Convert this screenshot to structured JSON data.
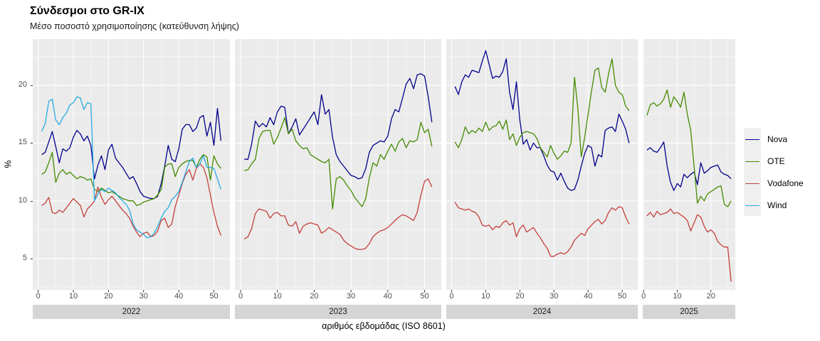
{
  "title": "Σύνδεσμοι στο GR-IX",
  "subtitle": "Μέσο ποσοστό χρησιμοποίησης (κατεύθυνση λήψης)",
  "x_axis": {
    "title": "αριθμός εβδομάδας (ISO 8601)"
  },
  "y_axis": {
    "label": "%",
    "ticks": [
      5,
      10,
      15,
      20
    ],
    "range": [
      2.3,
      24.0
    ]
  },
  "legend": {
    "items": [
      {
        "label": "Nova",
        "color": "#00008B"
      },
      {
        "label": "OTE",
        "color": "#458B00"
      },
      {
        "label": "Vodafone",
        "color": "#C4403C"
      },
      {
        "label": "Wind",
        "color": "#29ABE2"
      }
    ]
  },
  "chart_data": {
    "type": "line",
    "xlabel": "αριθμός εβδομάδας (ISO 8601)",
    "ylabel": "%",
    "ylim": [
      2.3,
      24.0
    ],
    "y_major_gridlines": [
      5,
      10,
      15,
      20
    ],
    "y_minor_gridlines": [
      2.5,
      7.5,
      12.5,
      17.5,
      22.5
    ],
    "weeks_start": 1,
    "facets": [
      {
        "year": "2022",
        "x_ticks": [
          0,
          10,
          20,
          30,
          40,
          50
        ],
        "series": [
          {
            "name": "Nova",
            "color": "#00008B",
            "values": [
              14.0,
              14.2,
              15.1,
              16.0,
              14.7,
              13.3,
              14.5,
              14.3,
              14.6,
              15.5,
              16.1,
              15.8,
              15.2,
              15.6,
              14.8,
              11.9,
              13.1,
              13.9,
              12.7,
              14.4,
              14.9,
              13.7,
              13.3,
              12.9,
              12.4,
              11.9,
              12.1,
              11.5,
              10.8,
              10.4,
              10.3,
              10.2,
              10.2,
              10.4,
              11.5,
              13.0,
              14.8,
              13.6,
              13.4,
              14.5,
              16.2,
              16.6,
              16.6,
              16.0,
              16.3,
              17.2,
              17.4,
              15.6,
              16.8,
              14.8,
              18.0,
              15.2
            ]
          },
          {
            "name": "OTE",
            "color": "#458B00",
            "values": [
              12.3,
              12.5,
              13.3,
              14.2,
              11.6,
              12.4,
              12.7,
              12.3,
              12.5,
              12.2,
              11.9,
              12.1,
              12.0,
              11.8,
              11.9,
              11.0,
              10.8,
              11.1,
              10.9,
              10.7,
              10.8,
              10.6,
              10.4,
              10.2,
              10.1,
              10.0,
              10.0,
              9.6,
              9.7,
              9.9,
              10.0,
              10.1,
              10.2,
              10.5,
              11.0,
              12.9,
              13.2,
              13.2,
              12.1,
              12.9,
              13.2,
              13.4,
              13.5,
              13.5,
              12.9,
              13.6,
              14.0,
              13.8,
              11.8,
              13.9,
              13.2,
              12.8
            ]
          },
          {
            "name": "Vodafone",
            "color": "#C4403C",
            "values": [
              9.6,
              9.8,
              10.3,
              9.0,
              8.9,
              9.2,
              9.0,
              9.4,
              9.8,
              10.2,
              9.9,
              9.6,
              8.6,
              9.3,
              9.6,
              10.0,
              11.2,
              10.3,
              9.7,
              10.1,
              10.4,
              10.0,
              9.6,
              9.2,
              8.9,
              8.5,
              7.8,
              7.3,
              6.9,
              7.2,
              7.3,
              6.9,
              7.0,
              7.4,
              8.3,
              8.5,
              7.7,
              8.0,
              9.5,
              10.5,
              11.5,
              12.3,
              12.7,
              11.8,
              12.8,
              13.2,
              12.9,
              12.0,
              10.5,
              9.0,
              7.8,
              7.0
            ]
          },
          {
            "name": "Wind",
            "color": "#29ABE2",
            "values": [
              16.0,
              16.7,
              18.6,
              18.8,
              17.0,
              16.6,
              17.2,
              17.6,
              18.3,
              18.5,
              19.0,
              18.9,
              17.9,
              18.5,
              18.4,
              10.0,
              10.6,
              11.0,
              10.8,
              11.1,
              10.9,
              10.7,
              10.3,
              10.0,
              9.7,
              9.2,
              8.0,
              7.5,
              7.3,
              7.1,
              6.8,
              6.9,
              7.2,
              7.8,
              8.5,
              9.1,
              9.4,
              10.1,
              10.4,
              10.8,
              11.6,
              12.5,
              13.4,
              13.7,
              12.9,
              13.2,
              13.9,
              12.9,
              12.9,
              12.8,
              11.9,
              11.0
            ]
          }
        ]
      },
      {
        "year": "2023",
        "x_ticks": [
          0,
          10,
          20,
          30,
          40,
          50
        ],
        "series": [
          {
            "name": "Nova",
            "color": "#00008B",
            "values": [
              13.6,
              13.6,
              14.9,
              16.9,
              16.4,
              16.7,
              16.4,
              17.2,
              16.6,
              17.7,
              18.2,
              18.1,
              15.8,
              16.4,
              17.1,
              15.7,
              16.2,
              16.7,
              17.2,
              17.7,
              16.6,
              19.2,
              17.5,
              17.9,
              15.5,
              14.0,
              13.4,
              13.0,
              12.6,
              12.2,
              12.1,
              11.9,
              12.0,
              12.8,
              14.2,
              14.8,
              15.0,
              15.2,
              15.1,
              15.6,
              17.1,
              17.9,
              17.7,
              18.9,
              20.1,
              20.6,
              19.7,
              20.9,
              21.0,
              20.8,
              19.0,
              16.8
            ]
          },
          {
            "name": "OTE",
            "color": "#458B00",
            "values": [
              12.6,
              12.7,
              13.2,
              13.6,
              15.4,
              16.0,
              16.1,
              16.1,
              14.9,
              15.5,
              16.3,
              17.2,
              15.8,
              16.2,
              15.2,
              14.8,
              14.5,
              14.6,
              14.0,
              13.8,
              13.6,
              13.4,
              13.3,
              13.6,
              9.3,
              11.9,
              12.1,
              11.8,
              11.3,
              10.9,
              10.3,
              9.9,
              9.5,
              10.2,
              12.0,
              13.3,
              13.0,
              14.0,
              13.6,
              14.3,
              14.9,
              14.3,
              15.1,
              15.4,
              14.6,
              15.2,
              15.1,
              15.3,
              16.8,
              15.9,
              16.2,
              14.7
            ]
          },
          {
            "name": "Vodafone",
            "color": "#C4403C",
            "values": [
              6.7,
              6.9,
              7.6,
              8.9,
              9.3,
              9.2,
              9.1,
              8.5,
              8.9,
              9.0,
              8.7,
              8.7,
              7.9,
              7.8,
              8.2,
              7.2,
              7.8,
              8.0,
              8.1,
              8.0,
              7.9,
              7.2,
              7.4,
              7.7,
              7.5,
              7.3,
              7.1,
              6.6,
              6.3,
              6.1,
              5.9,
              5.8,
              5.8,
              5.9,
              6.3,
              6.9,
              7.2,
              7.4,
              7.5,
              7.7,
              8.0,
              8.3,
              8.6,
              8.8,
              8.7,
              8.5,
              8.3,
              9.0,
              10.5,
              11.7,
              11.9,
              11.2
            ]
          }
        ]
      },
      {
        "year": "2024",
        "x_ticks": [
          0,
          10,
          20,
          30,
          40,
          50
        ],
        "series": [
          {
            "name": "Nova",
            "color": "#00008B",
            "values": [
              19.9,
              19.2,
              20.3,
              20.9,
              20.7,
              21.3,
              21.2,
              21.1,
              22.1,
              23.0,
              21.8,
              20.6,
              20.8,
              20.7,
              21.2,
              22.3,
              19.4,
              17.9,
              20.3,
              17.0,
              14.9,
              15.3,
              14.4,
              15.0,
              14.6,
              14.6,
              13.9,
              13.1,
              12.6,
              12.5,
              11.8,
              12.4,
              11.7,
              11.1,
              10.9,
              11.0,
              11.8,
              13.0,
              14.1,
              14.8,
              14.6,
              13.0,
              14.0,
              13.8,
              16.1,
              16.3,
              16.4,
              16.0,
              17.5,
              16.9,
              16.2,
              15.0
            ]
          },
          {
            "name": "OTE",
            "color": "#458B00",
            "values": [
              15.1,
              14.6,
              15.3,
              16.4,
              15.8,
              16.1,
              15.9,
              16.3,
              16.0,
              16.8,
              16.1,
              16.4,
              16.5,
              16.9,
              16.2,
              17.0,
              15.3,
              15.8,
              14.8,
              15.5,
              15.9,
              16.0,
              15.9,
              15.8,
              15.4,
              14.6,
              14.2,
              13.8,
              14.8,
              14.1,
              13.6,
              13.9,
              14.3,
              14.2,
              15.0,
              20.7,
              18.0,
              13.8,
              15.5,
              17.5,
              19.5,
              21.3,
              21.5,
              19.8,
              19.4,
              21.0,
              22.3,
              20.0,
              19.4,
              19.2,
              18.2,
              17.8
            ]
          },
          {
            "name": "Vodafone",
            "color": "#C4403C",
            "values": [
              9.9,
              9.4,
              9.3,
              9.2,
              9.3,
              9.1,
              9.0,
              8.6,
              7.9,
              7.8,
              7.9,
              7.5,
              7.8,
              7.7,
              8.1,
              8.3,
              7.9,
              8.1,
              6.9,
              7.6,
              7.9,
              7.3,
              7.5,
              7.7,
              7.2,
              6.8,
              6.3,
              5.9,
              5.2,
              5.2,
              5.4,
              5.5,
              5.4,
              5.6,
              6.0,
              6.6,
              6.9,
              7.2,
              7.0,
              7.6,
              7.9,
              8.2,
              8.4,
              8.0,
              8.3,
              9.0,
              9.4,
              9.2,
              9.5,
              9.4,
              8.6,
              8.0
            ]
          }
        ]
      },
      {
        "year": "2025",
        "x_ticks": [
          0,
          10,
          20
        ],
        "series": [
          {
            "name": "Nova",
            "color": "#00008B",
            "values": [
              14.4,
              14.6,
              14.3,
              14.2,
              14.6,
              15.1,
              13.0,
              11.6,
              10.9,
              11.5,
              11.2,
              12.3,
              12.0,
              12.3,
              12.5,
              11.4,
              13.3,
              12.4,
              12.6,
              12.9,
              13.0,
              13.1,
              12.5,
              12.3,
              12.2,
              11.9
            ]
          },
          {
            "name": "OTE",
            "color": "#458B00",
            "values": [
              17.4,
              18.3,
              18.5,
              18.2,
              18.4,
              18.8,
              19.6,
              18.1,
              19.0,
              18.6,
              18.1,
              19.4,
              17.5,
              16.1,
              13.0,
              9.8,
              10.4,
              10.0,
              10.6,
              10.8,
              11.0,
              11.2,
              11.3,
              9.7,
              9.5,
              10.0
            ]
          },
          {
            "name": "Vodafone",
            "color": "#C4403C",
            "values": [
              8.7,
              9.0,
              8.6,
              9.1,
              8.8,
              8.9,
              9.0,
              9.3,
              8.9,
              9.0,
              8.8,
              8.6,
              8.3,
              7.4,
              8.1,
              8.8,
              8.6,
              7.8,
              7.3,
              7.5,
              7.2,
              6.5,
              6.2,
              6.0,
              6.0,
              3.0
            ]
          }
        ]
      }
    ]
  }
}
